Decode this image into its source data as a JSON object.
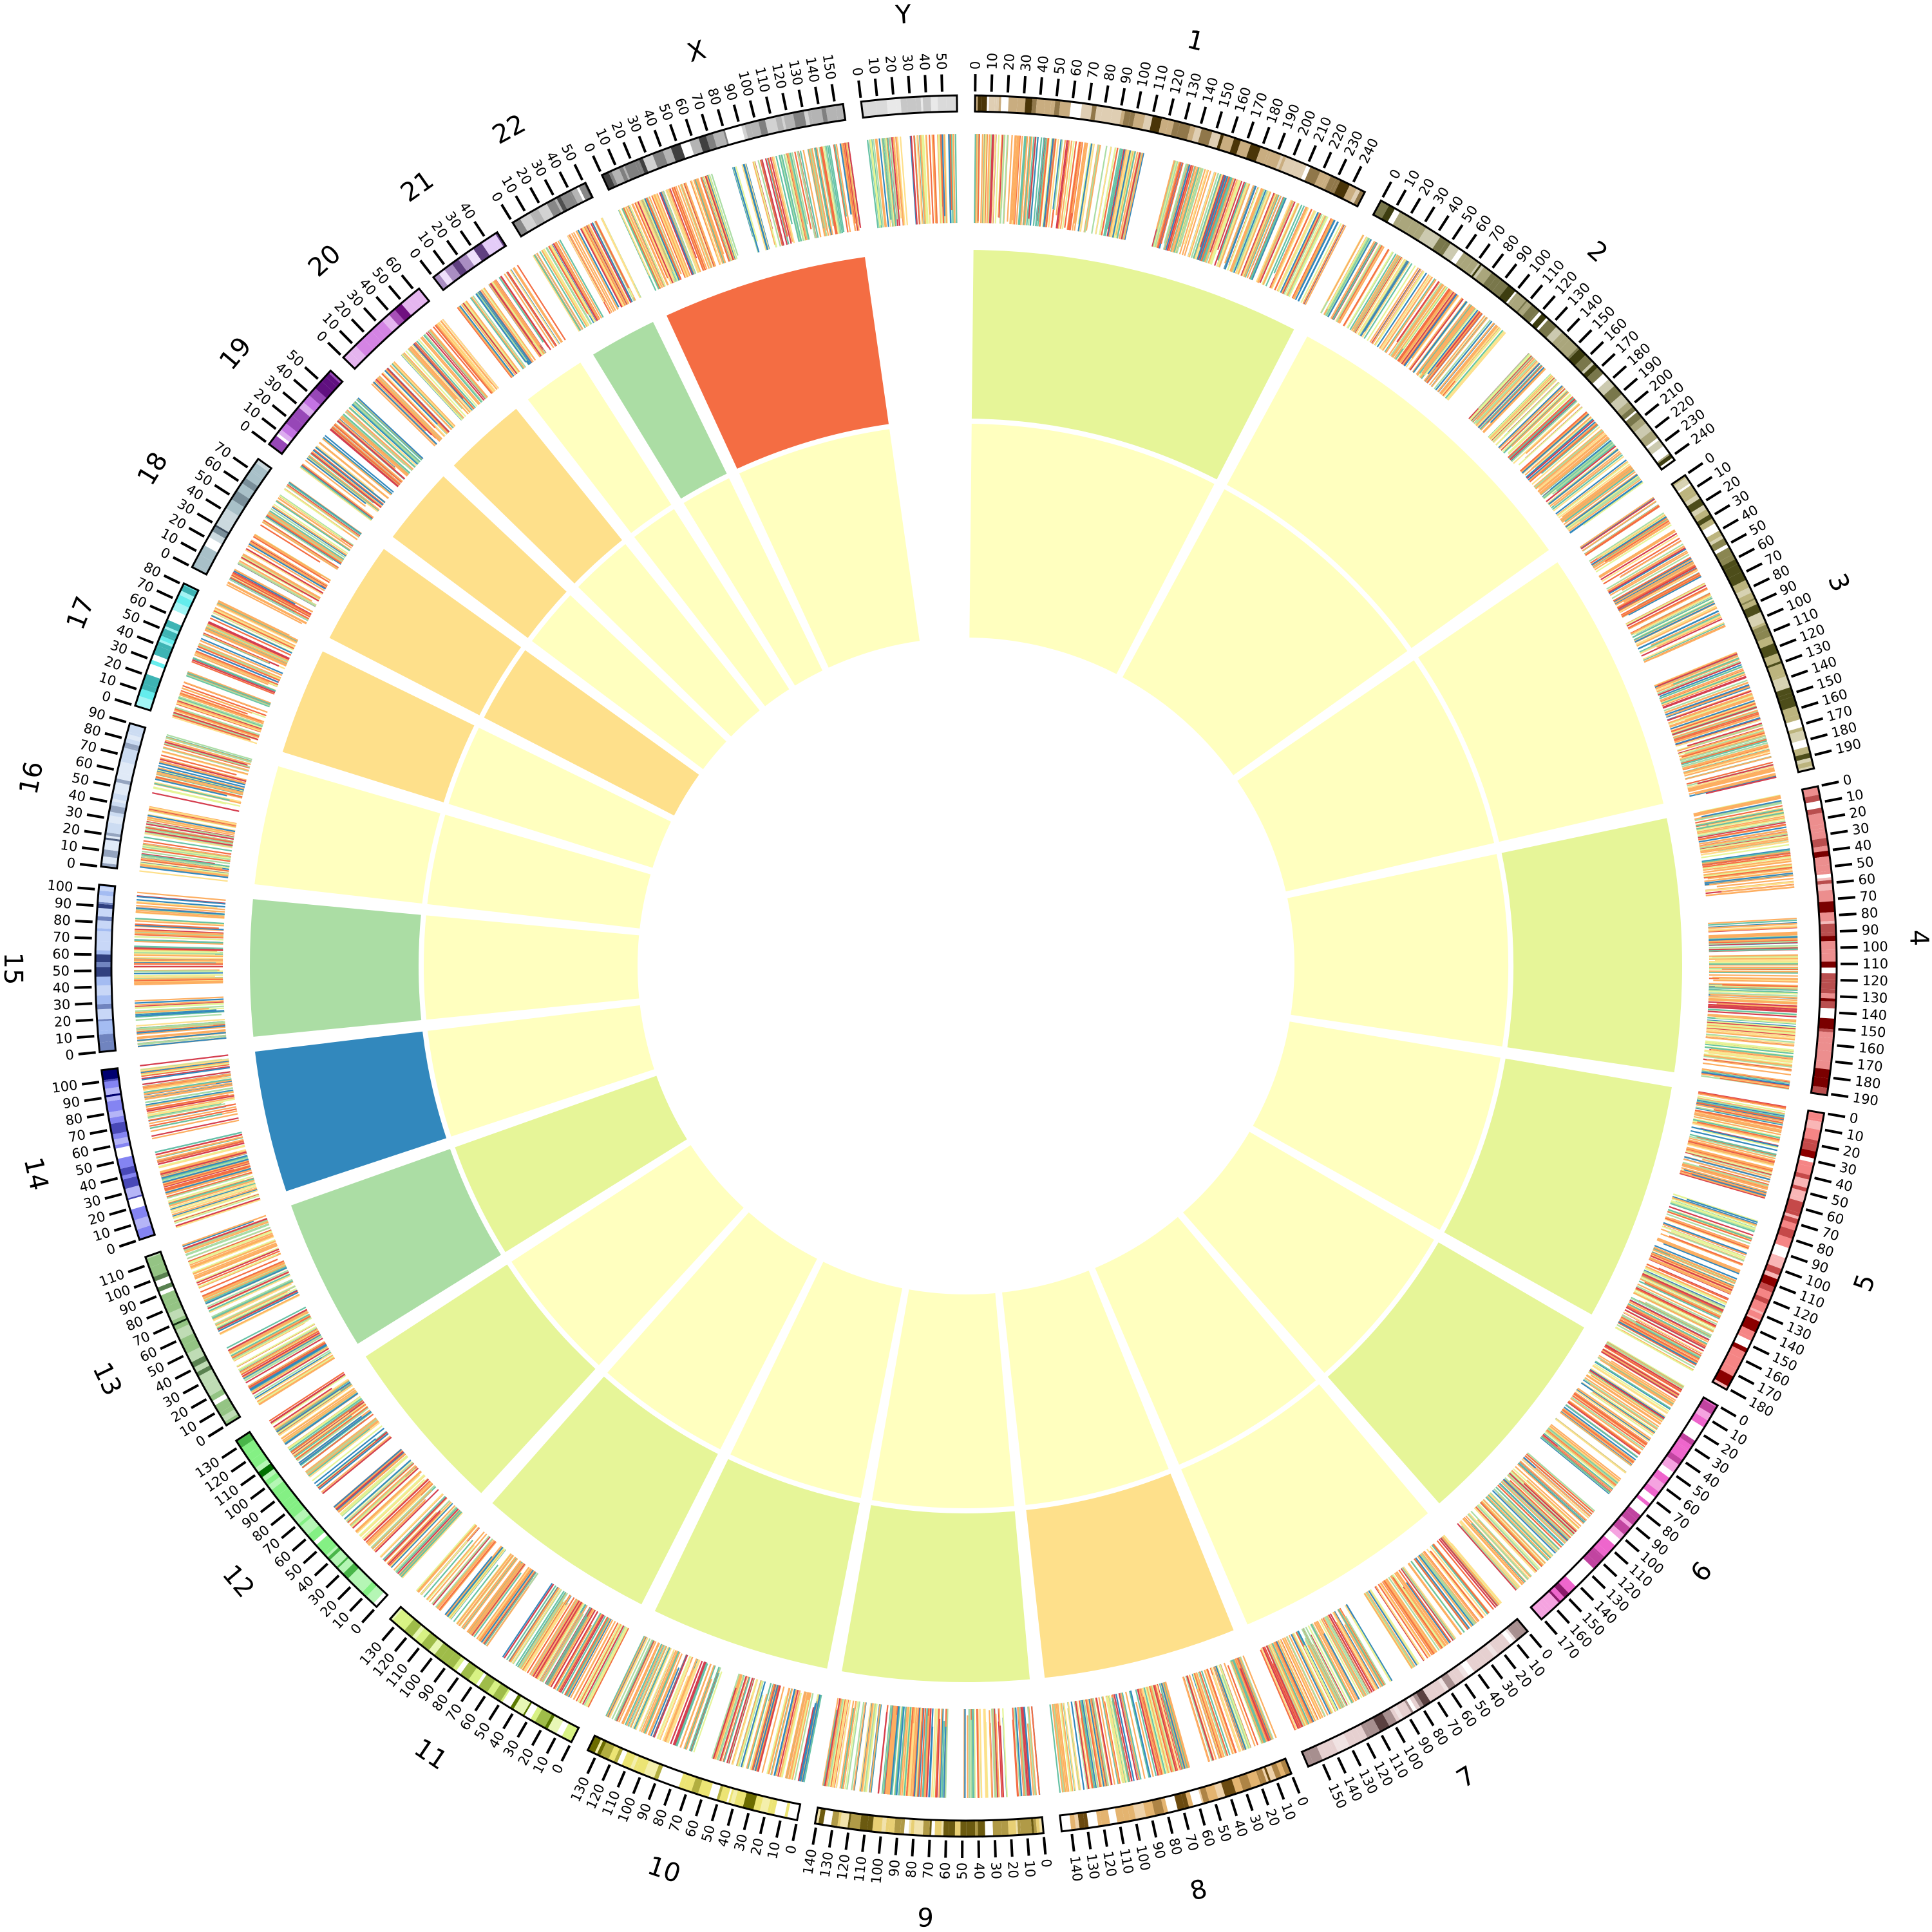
{
  "chart_data": {
    "type": "heatmap",
    "layout": "circular genome (circos)",
    "tick_step": 10,
    "palette": [
      "#d53e4f",
      "#f46d43",
      "#fdae61",
      "#fee08b",
      "#ffffbf",
      "#e6f598",
      "#abdda4",
      "#66c2a5",
      "#3288bd"
    ],
    "chromosomes": [
      {
        "name": "1",
        "length": 249,
        "ideogram": [
          "#c9ad80",
          "#4a3508"
        ],
        "outer_ring": "#e6f598",
        "inner_ring": "#ffffbf"
      },
      {
        "name": "2",
        "length": 243,
        "ideogram": [
          "#aaa67c",
          "#3d3d10"
        ],
        "outer_ring": "#ffffbf",
        "inner_ring": "#ffffbf"
      },
      {
        "name": "3",
        "length": 198,
        "ideogram": [
          "#bcb47e",
          "#4d4d1a"
        ],
        "outer_ring": "#ffffbf",
        "inner_ring": "#ffffbf"
      },
      {
        "name": "4",
        "length": 191,
        "ideogram": [
          "#ec8e8e",
          "#7a0000"
        ],
        "outer_ring": "#e6f598",
        "inner_ring": "#ffffbf"
      },
      {
        "name": "5",
        "length": 181,
        "ideogram": [
          "#f58585",
          "#8b0000"
        ],
        "outer_ring": "#e6f598",
        "inner_ring": "#ffffbf"
      },
      {
        "name": "6",
        "length": 171,
        "ideogram": [
          "#ee66cc",
          "#8b1a6b"
        ],
        "outer_ring": "#e6f598",
        "inner_ring": "#ffffbf"
      },
      {
        "name": "7",
        "length": 159,
        "ideogram": [
          "#e6d0d0",
          "#5a4040"
        ],
        "outer_ring": "#ffffbf",
        "inner_ring": "#ffffbf"
      },
      {
        "name": "8",
        "length": 146,
        "ideogram": [
          "#e4b470",
          "#6b4a10"
        ],
        "outer_ring": "#fee08b",
        "inner_ring": "#ffffbf"
      },
      {
        "name": "9",
        "length": 141,
        "ideogram": [
          "#e8cf74",
          "#6b5a10"
        ],
        "outer_ring": "#e6f598",
        "inner_ring": "#ffffbf"
      },
      {
        "name": "10",
        "length": 136,
        "ideogram": [
          "#ece474",
          "#6b6b00"
        ],
        "outer_ring": "#e6f598",
        "inner_ring": "#ffffbf"
      },
      {
        "name": "11",
        "length": 135,
        "ideogram": [
          "#d8f284",
          "#5a7a00"
        ],
        "outer_ring": "#e6f598",
        "inner_ring": "#ffffbf"
      },
      {
        "name": "12",
        "length": 134,
        "ideogram": [
          "#84f084",
          "#007000"
        ],
        "outer_ring": "#e6f598",
        "inner_ring": "#ffffbf"
      },
      {
        "name": "13",
        "length": 115,
        "ideogram": [
          "#94c484",
          "#103010"
        ],
        "outer_ring": "#abdda4",
        "inner_ring": "#e6f598"
      },
      {
        "name": "14",
        "length": 107,
        "ideogram": [
          "#8484f2",
          "#000070"
        ],
        "outer_ring": "#3288bd",
        "inner_ring": "#ffffbf"
      },
      {
        "name": "15",
        "length": 103,
        "ideogram": [
          "#a4bcf2",
          "#304080"
        ],
        "outer_ring": "#abdda4",
        "inner_ring": "#ffffbf"
      },
      {
        "name": "16",
        "length": 90,
        "ideogram": [
          "#ccdcf2",
          "#506080"
        ],
        "outer_ring": "#ffffbf",
        "inner_ring": "#ffffbf"
      },
      {
        "name": "17",
        "length": 81,
        "ideogram": [
          "#64ecec",
          "#107070"
        ],
        "outer_ring": "#fee08b",
        "inner_ring": "#ffffbf"
      },
      {
        "name": "18",
        "length": 78,
        "ideogram": [
          "#a8c0c8",
          "#405060"
        ],
        "outer_ring": "#fee08b",
        "inner_ring": "#fee08b"
      },
      {
        "name": "19",
        "length": 59,
        "ideogram": [
          "#c474e4",
          "#601080"
        ],
        "outer_ring": "#fee08b",
        "inner_ring": "#ffffbf"
      },
      {
        "name": "20",
        "length": 63,
        "ideogram": [
          "#d484e4",
          "#701080"
        ],
        "outer_ring": "#fee08b",
        "inner_ring": "#ffffbf"
      },
      {
        "name": "21",
        "length": 48,
        "ideogram": [
          "#e4ccf8",
          "#604080"
        ],
        "outer_ring": "#ffffbf",
        "inner_ring": "#ffffbf"
      },
      {
        "name": "22",
        "length": 51,
        "ideogram": [
          "#b4b4b4",
          "#505050"
        ],
        "outer_ring": "#abdda4",
        "inner_ring": "#ffffbf"
      },
      {
        "name": "X",
        "length": 155,
        "ideogram": [
          "#b4b4b4",
          "#404040"
        ],
        "outer_ring": "#f46d43",
        "inner_ring": "#ffffbf"
      },
      {
        "name": "Y",
        "length": 59,
        "ideogram": [
          "#dadada",
          "#b0b0b0"
        ],
        "outer_ring": null,
        "inner_ring": null
      }
    ]
  }
}
